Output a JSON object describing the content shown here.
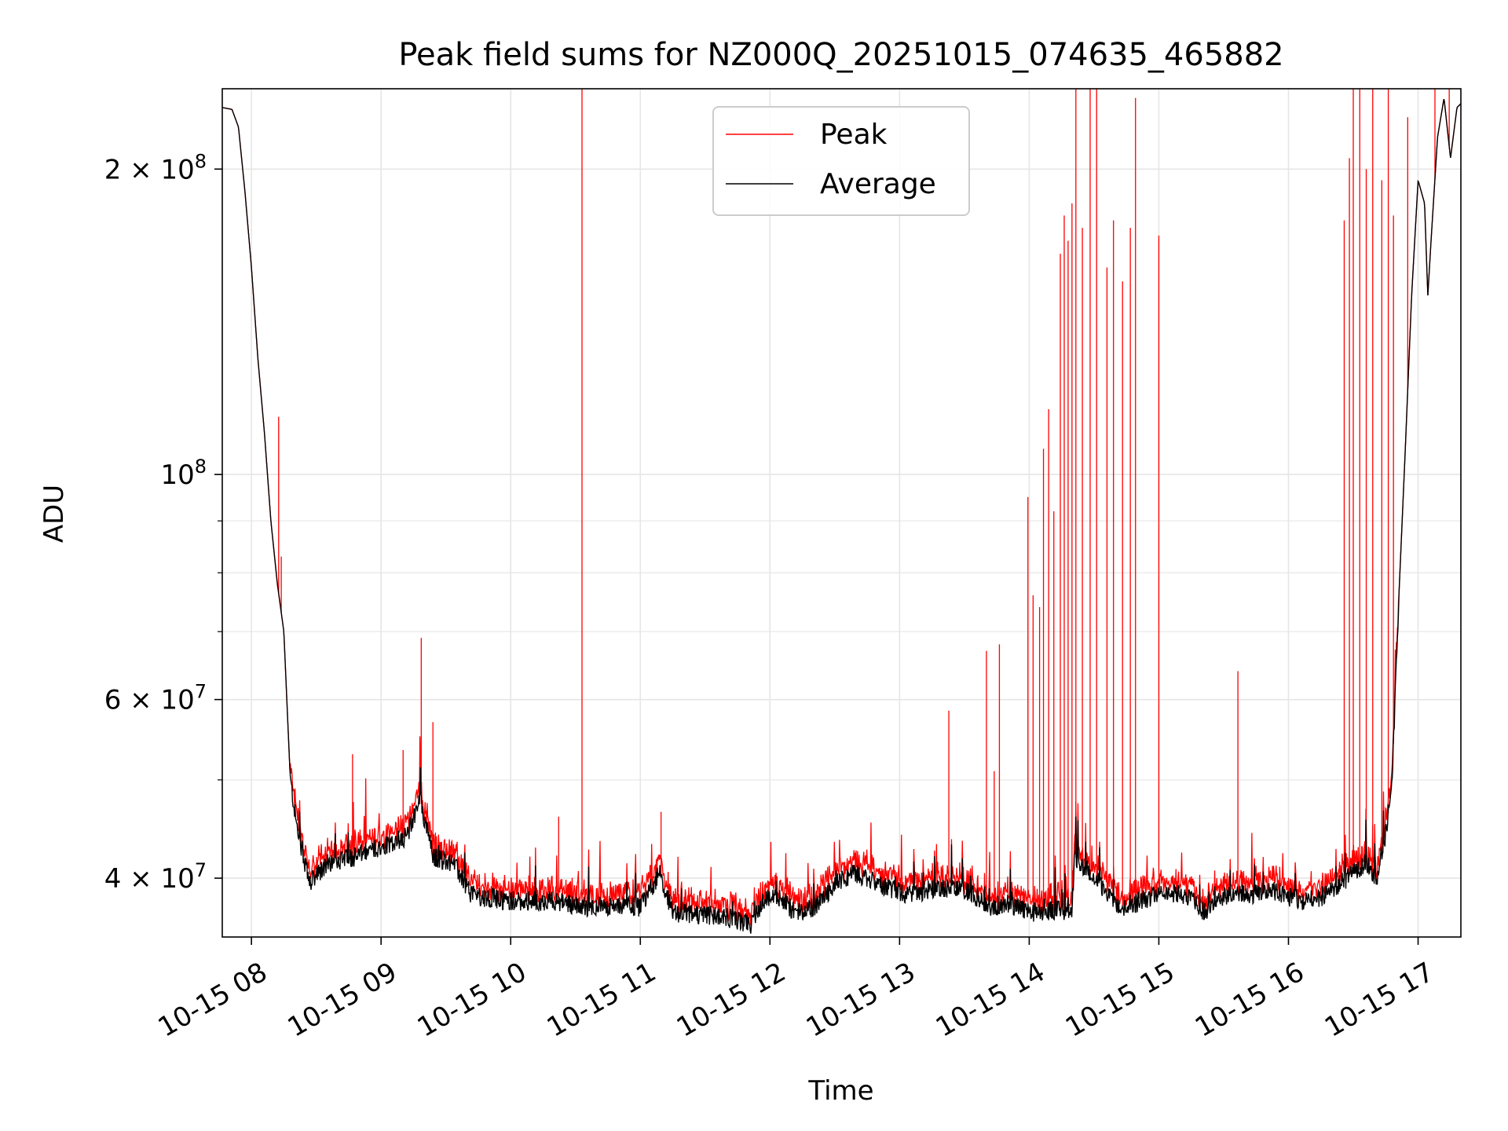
{
  "chart_data": {
    "type": "line",
    "title": "Peak field sums for NZ000Q_20251015_074635_465882",
    "xlabel": "Time",
    "ylabel": "ADU",
    "y_scale": "log",
    "ylim": [
      35000000,
      240000000
    ],
    "x_range_hours": [
      7.775,
      17.33
    ],
    "grid": true,
    "legend_position": "upper center",
    "x_ticks": [
      {
        "value": 8,
        "label": "10-15 08"
      },
      {
        "value": 9,
        "label": "10-15 09"
      },
      {
        "value": 10,
        "label": "10-15 10"
      },
      {
        "value": 11,
        "label": "10-15 11"
      },
      {
        "value": 12,
        "label": "10-15 12"
      },
      {
        "value": 13,
        "label": "10-15 13"
      },
      {
        "value": 14,
        "label": "10-15 14"
      },
      {
        "value": 15,
        "label": "10-15 15"
      },
      {
        "value": 16,
        "label": "10-15 16"
      },
      {
        "value": 17,
        "label": "10-15 17"
      }
    ],
    "y_ticks": [
      {
        "value": 40000000,
        "base": "4",
        "mult": "×",
        "exp_base": "10",
        "exp": "7"
      },
      {
        "value": 60000000,
        "base": "6",
        "mult": "×",
        "exp_base": "10",
        "exp": "7"
      },
      {
        "value": 100000000,
        "base": "",
        "mult": "",
        "exp_base": "10",
        "exp": "8"
      },
      {
        "value": 200000000,
        "base": "2",
        "mult": "×",
        "exp_base": "10",
        "exp": "8"
      }
    ],
    "y_minor_ticks": [
      50000000,
      70000000,
      80000000,
      90000000
    ],
    "series": [
      {
        "name": "Average",
        "color": "#000000"
      },
      {
        "name": "Peak",
        "color": "#ff0000"
      }
    ],
    "average_baseline": [
      [
        7.775,
        230000000
      ],
      [
        7.85,
        229000000
      ],
      [
        7.9,
        220000000
      ],
      [
        7.95,
        190000000
      ],
      [
        8.0,
        160000000
      ],
      [
        8.05,
        130000000
      ],
      [
        8.1,
        110000000
      ],
      [
        8.15,
        90000000
      ],
      [
        8.2,
        78000000
      ],
      [
        8.25,
        70000000
      ],
      [
        8.3,
        50000000
      ],
      [
        8.35,
        45000000
      ],
      [
        8.45,
        39500000
      ],
      [
        8.6,
        41500000
      ],
      [
        8.8,
        42000000
      ],
      [
        9.0,
        43000000
      ],
      [
        9.2,
        44000000
      ],
      [
        9.3,
        48000000
      ],
      [
        9.4,
        42000000
      ],
      [
        9.55,
        41500000
      ],
      [
        9.7,
        38500000
      ],
      [
        10.0,
        38000000
      ],
      [
        10.3,
        38000000
      ],
      [
        10.6,
        37500000
      ],
      [
        10.9,
        37500000
      ],
      [
        11.0,
        37500000
      ],
      [
        11.15,
        40500000
      ],
      [
        11.25,
        37000000
      ],
      [
        11.5,
        36800000
      ],
      [
        11.7,
        36500000
      ],
      [
        11.85,
        36000000
      ],
      [
        11.95,
        38000000
      ],
      [
        12.05,
        38500000
      ],
      [
        12.2,
        37000000
      ],
      [
        12.35,
        37500000
      ],
      [
        12.5,
        39500000
      ],
      [
        12.65,
        40500000
      ],
      [
        12.85,
        39500000
      ],
      [
        13.05,
        38500000
      ],
      [
        13.3,
        39200000
      ],
      [
        13.5,
        39000000
      ],
      [
        13.7,
        37500000
      ],
      [
        13.85,
        37800000
      ],
      [
        14.0,
        37000000
      ],
      [
        14.2,
        37200000
      ],
      [
        14.33,
        37200000
      ],
      [
        14.35,
        42000000
      ],
      [
        14.5,
        40000000
      ],
      [
        14.7,
        37500000
      ],
      [
        14.9,
        38000000
      ],
      [
        15.0,
        38800000
      ],
      [
        15.2,
        38500000
      ],
      [
        15.35,
        37000000
      ],
      [
        15.5,
        38500000
      ],
      [
        15.7,
        38500000
      ],
      [
        15.9,
        38800000
      ],
      [
        16.1,
        38000000
      ],
      [
        16.3,
        38500000
      ],
      [
        16.45,
        40000000
      ],
      [
        16.6,
        41500000
      ],
      [
        16.68,
        40000000
      ],
      [
        16.75,
        44000000
      ],
      [
        16.8,
        50000000
      ],
      [
        16.85,
        75000000
      ],
      [
        16.9,
        105000000
      ],
      [
        16.95,
        150000000
      ],
      [
        17.0,
        195000000
      ],
      [
        17.05,
        185000000
      ],
      [
        17.075,
        150000000
      ],
      [
        17.1,
        170000000
      ],
      [
        17.15,
        215000000
      ],
      [
        17.2,
        235000000
      ],
      [
        17.25,
        205000000
      ],
      [
        17.3,
        230000000
      ],
      [
        17.33,
        232000000
      ]
    ],
    "peak_spikes": [
      [
        8.21,
        114000000
      ],
      [
        8.23,
        83000000
      ],
      [
        8.78,
        53000000
      ],
      [
        9.17,
        53500000
      ],
      [
        9.31,
        69000000
      ],
      [
        9.4,
        57000000
      ],
      [
        10.37,
        46000000
      ],
      [
        10.55,
        240000000
      ],
      [
        11.16,
        46500000
      ],
      [
        13.38,
        58500000
      ],
      [
        13.67,
        67000000
      ],
      [
        13.73,
        51000000
      ],
      [
        13.77,
        68000000
      ],
      [
        13.99,
        95000000
      ],
      [
        14.03,
        76000000
      ],
      [
        14.08,
        74000000
      ],
      [
        14.11,
        106000000
      ],
      [
        14.15,
        116000000
      ],
      [
        14.19,
        92000000
      ],
      [
        14.24,
        165000000
      ],
      [
        14.27,
        180000000
      ],
      [
        14.3,
        170000000
      ],
      [
        14.33,
        185000000
      ],
      [
        14.36,
        240000000
      ],
      [
        14.41,
        175000000
      ],
      [
        14.47,
        240000000
      ],
      [
        14.52,
        240000000
      ],
      [
        14.6,
        160000000
      ],
      [
        14.65,
        178000000
      ],
      [
        14.72,
        155000000
      ],
      [
        14.78,
        175000000
      ],
      [
        14.82,
        235000000
      ],
      [
        15.0,
        172000000
      ],
      [
        15.61,
        64000000
      ],
      [
        16.43,
        178000000
      ],
      [
        16.47,
        205000000
      ],
      [
        16.5,
        240000000
      ],
      [
        16.55,
        240000000
      ],
      [
        16.6,
        200000000
      ],
      [
        16.65,
        240000000
      ],
      [
        16.72,
        195000000
      ],
      [
        16.77,
        240000000
      ],
      [
        16.81,
        180000000
      ],
      [
        16.92,
        225000000
      ],
      [
        17.13,
        240000000
      ],
      [
        17.24,
        240000000
      ]
    ]
  }
}
